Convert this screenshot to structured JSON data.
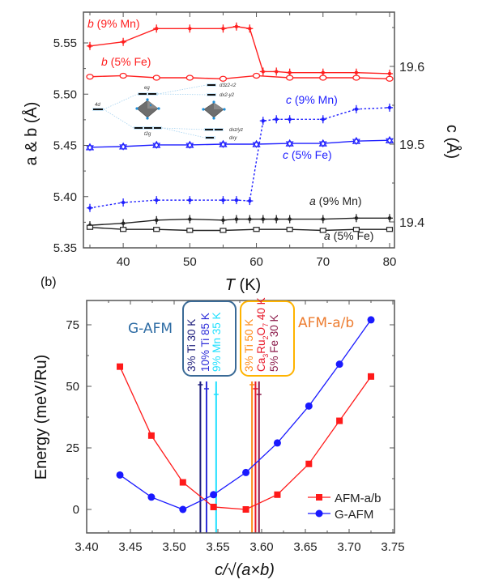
{
  "chart_data": [
    {
      "panel": "a",
      "type": "line",
      "title": "",
      "xlabel": "T (K)",
      "ylabel_left": "a & b (Å)",
      "ylabel_right": "c (Å)",
      "xlim": [
        35,
        80
      ],
      "ylim_left": [
        5.35,
        5.575
      ],
      "ylim_right": [
        19.365,
        19.665
      ],
      "x_ticks": [
        40,
        50,
        60,
        70,
        80
      ],
      "y_ticks_left": [
        "5.35",
        "5.40",
        "5.45",
        "5.50",
        "5.55"
      ],
      "y_ticks_right": [
        "19.4",
        "19.5",
        "19.6"
      ],
      "series": [
        {
          "name": "b (9% Mn)",
          "label_prefix": "b",
          "label_suffix": " (9% Mn)",
          "axis": "left",
          "color": "#ff2020",
          "style": "solid",
          "marker": "cross",
          "x": [
            35,
            40,
            45,
            50,
            55,
            57,
            59,
            61,
            63,
            65,
            70,
            75,
            80
          ],
          "y": [
            5.547,
            5.551,
            5.564,
            5.564,
            5.564,
            5.566,
            5.564,
            5.522,
            5.522,
            5.521,
            5.521,
            5.521,
            5.52
          ]
        },
        {
          "name": "b (5% Fe)",
          "label_prefix": "b",
          "label_suffix": " (5% Fe)",
          "axis": "left",
          "color": "#ff2020",
          "style": "solid",
          "marker": "circle-open",
          "x": [
            35,
            40,
            45,
            50,
            55,
            60,
            65,
            70,
            75,
            80
          ],
          "y": [
            5.517,
            5.518,
            5.516,
            5.516,
            5.515,
            5.518,
            5.516,
            5.516,
            5.516,
            5.515
          ]
        },
        {
          "name": "c (9% Mn)",
          "label_prefix": "c",
          "label_suffix": " (9% Mn)",
          "axis": "right",
          "color": "#1f1fff",
          "style": "dotted",
          "marker": "cross",
          "x": [
            35,
            40,
            45,
            50,
            55,
            57,
            59,
            61,
            63,
            65,
            70,
            75,
            80
          ],
          "y": [
            19.418,
            19.425,
            19.428,
            19.428,
            19.428,
            19.428,
            19.427,
            19.53,
            19.532,
            19.532,
            19.532,
            19.545,
            19.547
          ]
        },
        {
          "name": "c (5% Fe)",
          "label_prefix": "c",
          "label_suffix": " (5% Fe)",
          "axis": "right",
          "color": "#1f1fff",
          "style": "solid",
          "marker": "triangle-open",
          "x": [
            35,
            40,
            45,
            50,
            55,
            60,
            65,
            70,
            75,
            80
          ],
          "y": [
            19.496,
            19.497,
            19.499,
            19.499,
            19.5,
            19.5,
            19.501,
            19.501,
            19.504,
            19.505
          ]
        },
        {
          "name": "a (9% Mn)",
          "label_prefix": "a",
          "label_suffix": " (9% Mn)",
          "axis": "left",
          "color": "#222222",
          "style": "solid",
          "marker": "cross",
          "x": [
            35,
            40,
            45,
            50,
            55,
            57,
            59,
            61,
            63,
            65,
            70,
            75,
            80
          ],
          "y": [
            5.372,
            5.374,
            5.377,
            5.378,
            5.377,
            5.378,
            5.378,
            5.378,
            5.378,
            5.378,
            5.378,
            5.379,
            5.379
          ]
        },
        {
          "name": "a (5% Fe)",
          "label_prefix": "a",
          "label_suffix": " (5% Fe)",
          "axis": "left",
          "color": "#222222",
          "style": "solid",
          "marker": "square-open",
          "x": [
            35,
            40,
            45,
            50,
            55,
            60,
            65,
            70,
            75,
            80
          ],
          "y": [
            5.37,
            5.368,
            5.368,
            5.367,
            5.367,
            5.368,
            5.368,
            5.367,
            5.368,
            5.368
          ]
        }
      ],
      "inset": {
        "description": "crystal-field splitting diagram",
        "labels": [
          "4d",
          "eg",
          "t2g",
          "d3z2-r2",
          "dx2-y2",
          "dxz/yz",
          "dxy"
        ]
      }
    },
    {
      "panel": "b",
      "panel_label": "(b)",
      "type": "line",
      "title": "",
      "xlabel": "c/√(a×b)",
      "ylabel": "Energy (meV/Ru)",
      "xlim": [
        3.4,
        3.75
      ],
      "ylim": [
        -10,
        85
      ],
      "x_ticks": [
        "3.40",
        "3.45",
        "3.50",
        "3.55",
        "3.60",
        "3.65",
        "3.70",
        "3.75"
      ],
      "y_ticks": [
        "0",
        "25",
        "50",
        "75"
      ],
      "legend_position": "bottom-right",
      "series": [
        {
          "name": "AFM-a/b",
          "color": "#ff1a1a",
          "marker": "square",
          "x": [
            3.438,
            3.474,
            3.51,
            3.545,
            3.582,
            3.618,
            3.654,
            3.689,
            3.725
          ],
          "y": [
            58,
            30,
            11,
            1,
            0,
            6,
            18.5,
            36,
            54
          ]
        },
        {
          "name": "G-AFM",
          "color": "#1a1aff",
          "marker": "circle",
          "x": [
            3.438,
            3.474,
            3.51,
            3.545,
            3.582,
            3.618,
            3.654,
            3.689,
            3.725
          ],
          "y": [
            14,
            5,
            0,
            6,
            15,
            27,
            42,
            59,
            77
          ]
        }
      ],
      "vertical_lines": [
        {
          "label": "3% Ti 30 K",
          "x": 3.53,
          "color": "#1c1c7a",
          "group": "G-AFM"
        },
        {
          "label": "10% Ti 85 K",
          "x": 3.537,
          "color": "#2b2bd9",
          "group": "G-AFM"
        },
        {
          "label": "9% Mn 35 K",
          "x": 3.548,
          "color": "#20e0ff",
          "group": "G-AFM"
        },
        {
          "label": "3% Ti 50 K",
          "x": 3.589,
          "color": "#ff8c1a",
          "group": "AFM-a/b"
        },
        {
          "label": "Ca3Ru2O7 40 K",
          "x": 3.593,
          "color": "#e8182a",
          "group": "AFM-a/b"
        },
        {
          "label": "5% Fe 30 K",
          "x": 3.597,
          "color": "#8b1a4a",
          "group": "AFM-a/b"
        }
      ],
      "annotations": {
        "g_afm": {
          "text": "G-AFM",
          "color": "#2e6ca4"
        },
        "afm_ab": {
          "text": "AFM-a/b",
          "color": "#ed7d31"
        },
        "box_gafm_color": "#3a6a96",
        "box_afmab_color": "#ffb300"
      }
    }
  ]
}
